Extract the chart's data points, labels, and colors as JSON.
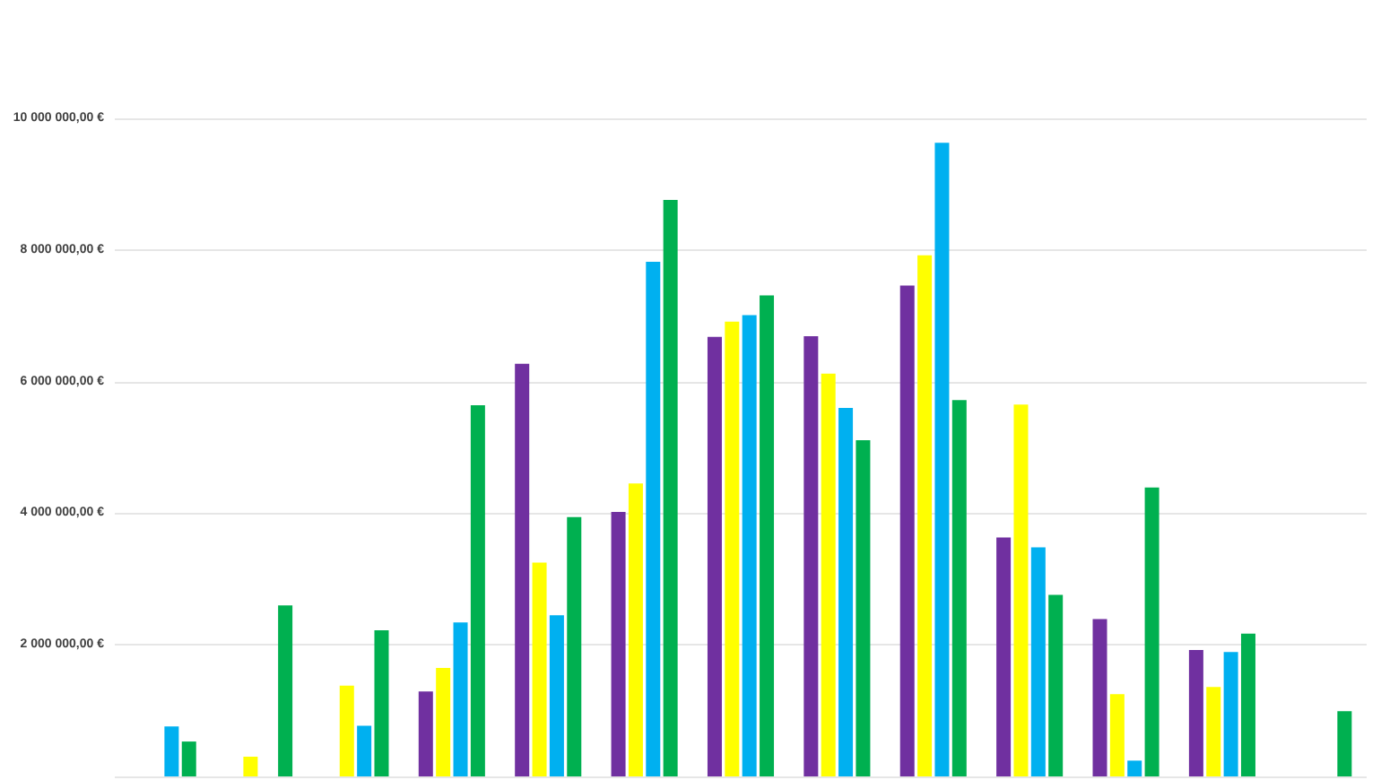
{
  "chart_data": {
    "type": "bar",
    "categories": [
      null,
      null,
      null,
      null,
      null,
      null,
      null,
      null,
      null,
      null,
      null,
      null,
      null
    ],
    "series": [
      {
        "color": "#7030a0",
        "values": [
          null,
          null,
          null,
          1290000,
          6270000,
          4020000,
          6680000,
          6690000,
          7460000,
          3630000,
          2390000,
          1920000,
          null
        ]
      },
      {
        "color": "#ffff00",
        "values": [
          null,
          300000,
          1380000,
          1650000,
          3250000,
          4450000,
          6910000,
          6120000,
          7920000,
          5650000,
          1250000,
          1360000,
          null
        ]
      },
      {
        "color": "#00b0f0",
        "values": [
          760000,
          null,
          770000,
          2340000,
          2450000,
          7820000,
          7010000,
          5600000,
          9630000,
          3480000,
          240000,
          1890000,
          null
        ]
      },
      {
        "color": "#00b050",
        "values": [
          530000,
          2600000,
          2220000,
          5640000,
          3940000,
          8760000,
          7310000,
          5110000,
          5720000,
          2760000,
          4390000,
          2170000,
          990000
        ]
      }
    ],
    "ylim": [
      0,
      10000000
    ],
    "yticks": [
      {
        "value": 2000000,
        "label": "2 000 000,00 €"
      },
      {
        "value": 4000000,
        "label": "4 000 000,00 €"
      },
      {
        "value": 6000000,
        "label": "6 000 000,00 €"
      },
      {
        "value": 8000000,
        "label": "8 000 000,00 €"
      },
      {
        "value": 10000000,
        "label": "10 000 000,00 €"
      }
    ],
    "grid": "y"
  }
}
